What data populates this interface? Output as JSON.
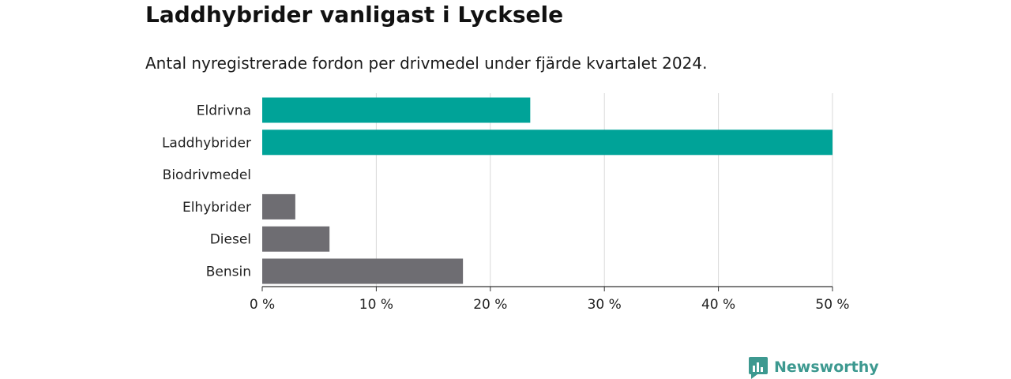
{
  "header": {
    "title": "Laddhybrider vanligast i Lycksele",
    "subtitle": "Antal nyregistrerade fordon per drivmedel under fjärde kvartalet 2024."
  },
  "brand": {
    "name": "Newsworthy",
    "icon": "newsworthy-logo-icon",
    "color": "#3d9990"
  },
  "chart_data": {
    "type": "bar",
    "orientation": "horizontal",
    "categories": [
      "Eldrivna",
      "Laddhybrider",
      "Biodrivmedel",
      "Elhybrider",
      "Diesel",
      "Bensin"
    ],
    "values": [
      23.5,
      50,
      0,
      2.9,
      5.9,
      17.6
    ],
    "colors": [
      "#00a398",
      "#00a398",
      "#00a398",
      "#6e6d72",
      "#6e6d72",
      "#6e6d72"
    ],
    "xlim": [
      0,
      50
    ],
    "xticks": [
      0,
      10,
      20,
      30,
      40,
      50
    ],
    "xtick_labels": [
      "0 %",
      "10 %",
      "20 %",
      "30 %",
      "40 %",
      "50 %"
    ],
    "grid": true
  }
}
